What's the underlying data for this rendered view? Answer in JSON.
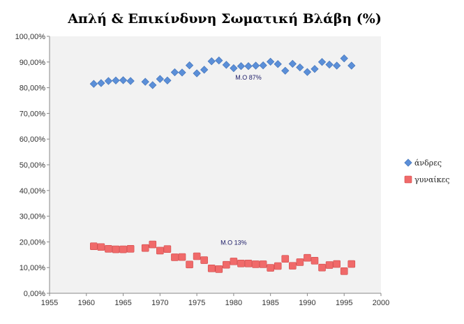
{
  "chart_data": {
    "type": "scatter",
    "title": "Απλή & Επικίνδυνη Σωματική Βλάβη (%)",
    "xlabel": "",
    "ylabel": "",
    "xlim": [
      1955,
      2000
    ],
    "ylim": [
      0,
      100
    ],
    "x_ticks": [
      "1955",
      "1960",
      "1965",
      "1970",
      "1975",
      "1980",
      "1985",
      "1990",
      "1995",
      "2000"
    ],
    "y_ticks": [
      "0,00%",
      "10,00%",
      "20,00%",
      "30,00%",
      "40,00%",
      "50,00%",
      "60,00%",
      "70,00%",
      "80,00%",
      "90,00%",
      "100,00%"
    ],
    "grid": false,
    "legend": "right",
    "plot_background": "#f2f2f2",
    "series": [
      {
        "name": "άνδρες",
        "color": "#5b8fd8",
        "marker": "diamond",
        "x": [
          1961,
          1962,
          1963,
          1964,
          1965,
          1966,
          1968,
          1969,
          1970,
          1971,
          1972,
          1973,
          1974,
          1975,
          1976,
          1977,
          1978,
          1979,
          1980,
          1981,
          1982,
          1983,
          1984,
          1985,
          1986,
          1987,
          1988,
          1989,
          1990,
          1991,
          1992,
          1993,
          1994,
          1995,
          1996
        ],
        "y": [
          81.5,
          81.8,
          82.6,
          82.8,
          82.9,
          82.6,
          82.3,
          81.0,
          83.4,
          82.8,
          86.0,
          85.9,
          88.7,
          85.6,
          87.0,
          90.3,
          90.6,
          88.9,
          87.6,
          88.4,
          88.4,
          88.6,
          88.7,
          90.1,
          89.2,
          86.6,
          89.3,
          87.9,
          86.1,
          87.3,
          90.0,
          89.0,
          88.6,
          91.4,
          88.6
        ]
      },
      {
        "name": "γυναίκες",
        "color": "#f06a6a",
        "marker": "square",
        "x": [
          1961,
          1962,
          1963,
          1964,
          1965,
          1966,
          1968,
          1969,
          1970,
          1971,
          1972,
          1973,
          1974,
          1975,
          1976,
          1977,
          1978,
          1979,
          1980,
          1981,
          1982,
          1983,
          1984,
          1985,
          1986,
          1987,
          1988,
          1989,
          1990,
          1991,
          1992,
          1993,
          1994,
          1995,
          1996
        ],
        "y": [
          18.3,
          18.0,
          17.3,
          17.1,
          17.1,
          17.3,
          17.6,
          19.0,
          16.6,
          17.2,
          14.0,
          14.1,
          11.2,
          14.4,
          12.9,
          9.7,
          9.4,
          11.1,
          12.4,
          11.6,
          11.6,
          11.3,
          11.3,
          9.9,
          10.6,
          13.4,
          10.7,
          12.1,
          13.8,
          12.7,
          10.0,
          11.0,
          11.4,
          8.6,
          11.4
        ]
      }
    ],
    "annotations": [
      {
        "text": "Μ.Ο 87%",
        "x": 1982,
        "y": 83.2
      },
      {
        "text": "Μ.Ο 13%",
        "x": 1980,
        "y": 18.9
      }
    ]
  }
}
